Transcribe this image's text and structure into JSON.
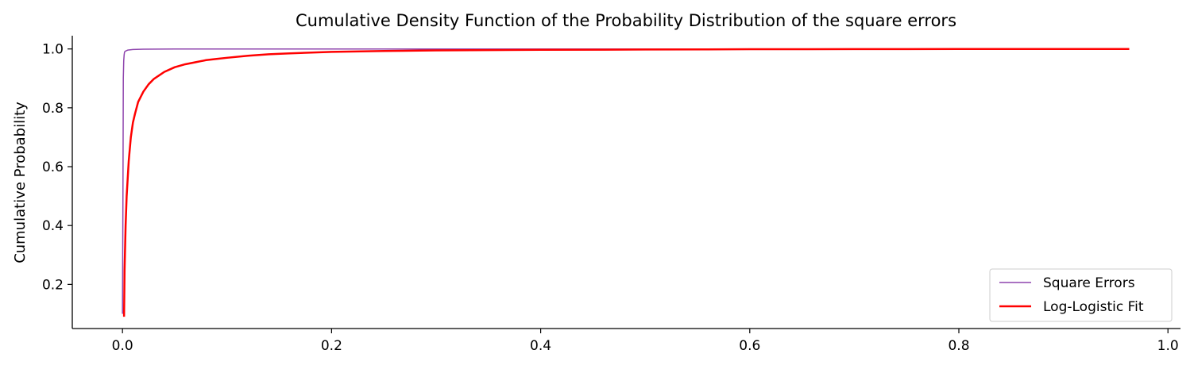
{
  "chart_data": {
    "type": "line",
    "title": "Cumulative Density Function of the Probability Distribution of the square errors",
    "xlabel": "",
    "ylabel": "Cumulative Probability",
    "xlim": [
      -0.048,
      1.012
    ],
    "ylim": [
      0.05,
      1.045
    ],
    "x_ticks": [
      0.0,
      0.2,
      0.4,
      0.6,
      0.8,
      1.0
    ],
    "x_tick_labels": [
      "0.0",
      "0.2",
      "0.4",
      "0.6",
      "0.8",
      "1.0"
    ],
    "y_ticks": [
      0.2,
      0.4,
      0.6,
      0.8,
      1.0
    ],
    "y_tick_labels": [
      "0.2",
      "0.4",
      "0.6",
      "0.8",
      "1.0"
    ],
    "grid": false,
    "legend_position": "lower-right",
    "series": [
      {
        "name": "Square Errors",
        "color": "#8e44ad",
        "x": [
          0.0,
          0.0004,
          0.0008,
          0.0012,
          0.0016,
          0.002,
          0.003,
          0.005,
          0.01,
          0.02,
          0.05,
          0.1,
          0.3,
          0.6,
          0.963
        ],
        "y": [
          0.1,
          0.45,
          0.9,
          0.96,
          0.98,
          0.99,
          0.993,
          0.996,
          0.998,
          0.999,
          1.0,
          1.0,
          1.0,
          1.0,
          1.0
        ]
      },
      {
        "name": "Log-Logistic Fit",
        "color": "#ff0000",
        "x": [
          0.0015,
          0.002,
          0.003,
          0.004,
          0.005,
          0.006,
          0.008,
          0.01,
          0.012,
          0.015,
          0.02,
          0.025,
          0.03,
          0.035,
          0.04,
          0.05,
          0.06,
          0.07,
          0.08,
          0.09,
          0.1,
          0.12,
          0.14,
          0.16,
          0.2,
          0.25,
          0.3,
          0.4,
          0.5,
          0.6,
          0.7,
          0.8,
          0.963
        ],
        "y": [
          0.09,
          0.25,
          0.4,
          0.5,
          0.56,
          0.62,
          0.7,
          0.75,
          0.78,
          0.82,
          0.855,
          0.88,
          0.898,
          0.91,
          0.922,
          0.938,
          0.948,
          0.955,
          0.962,
          0.966,
          0.97,
          0.977,
          0.982,
          0.985,
          0.99,
          0.993,
          0.995,
          0.997,
          0.998,
          0.999,
          0.9995,
          0.9998,
          1.0
        ]
      }
    ]
  }
}
